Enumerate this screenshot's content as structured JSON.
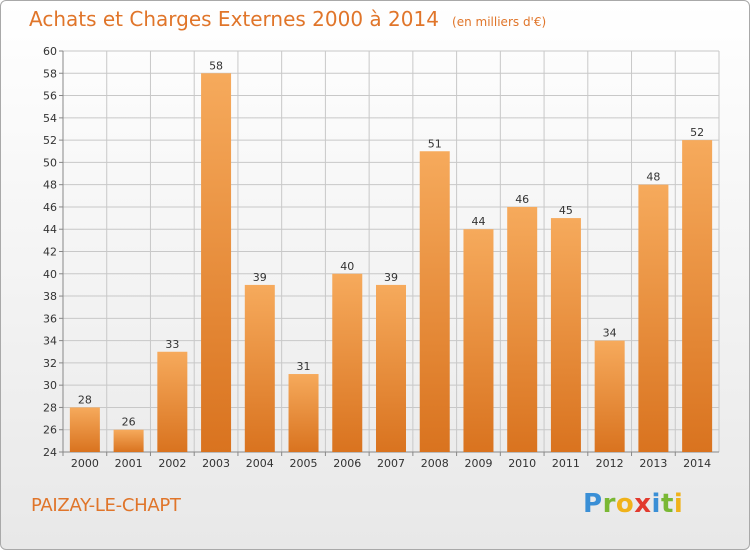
{
  "title": "Achats et Charges Externes 2000 à 2014",
  "subtitle": "(en milliers d'€)",
  "location": "PAIZAY-LE-CHAPT",
  "logo": {
    "letters": [
      "P",
      "r",
      "o",
      "x",
      "i",
      "t",
      "i"
    ],
    "colors": [
      "#3a8fd6",
      "#7ab834",
      "#f0b21a",
      "#e23a2e",
      "#3a8fd6",
      "#7ab834",
      "#f0b21a"
    ]
  },
  "colors": {
    "bar": "#e8843a",
    "bar_light": "#f6aa5c",
    "text": "#333333",
    "title": "#e0752a",
    "grid": "#c8c8c8"
  },
  "chart_data": {
    "type": "bar",
    "categories": [
      "2000",
      "2001",
      "2002",
      "2003",
      "2004",
      "2005",
      "2006",
      "2007",
      "2008",
      "2009",
      "2010",
      "2011",
      "2012",
      "2013",
      "2014"
    ],
    "values": [
      28,
      26,
      33,
      58,
      39,
      31,
      40,
      39,
      51,
      44,
      46,
      45,
      34,
      48,
      52
    ],
    "title": "Achats et Charges Externes 2000 à 2014",
    "xlabel": "",
    "ylabel": "",
    "ylim": [
      24,
      60
    ],
    "yticks": [
      24,
      26,
      28,
      30,
      32,
      34,
      36,
      38,
      40,
      42,
      44,
      46,
      48,
      50,
      52,
      54,
      56,
      58,
      60
    ],
    "grid": true
  }
}
